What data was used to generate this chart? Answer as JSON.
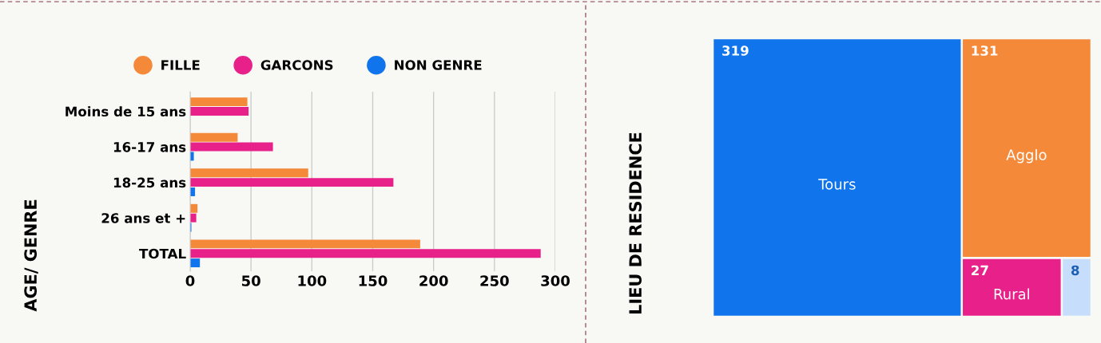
{
  "chart_data": [
    {
      "type": "bar",
      "orientation": "horizontal",
      "ylabel": "AGE/ GENRE",
      "categories": [
        "Moins de 15 ans",
        "16-17 ans",
        "18-25 ans",
        "26 ans et +",
        "TOTAL"
      ],
      "series": [
        {
          "name": "FILLE",
          "color": "#f5893a",
          "values": [
            47,
            39,
            97,
            6,
            189
          ]
        },
        {
          "name": "GARCONS",
          "color": "#e8218a",
          "values": [
            48,
            68,
            167,
            5,
            288
          ]
        },
        {
          "name": "NON GENRE",
          "color": "#1074ec",
          "values": [
            0,
            3,
            4,
            1,
            8
          ]
        }
      ],
      "xlim": [
        0,
        300
      ],
      "xticks": [
        0,
        50,
        100,
        150,
        200,
        250,
        300
      ],
      "grid": "x",
      "legend": "top",
      "marker": "circle"
    },
    {
      "type": "other",
      "ylabel": "LIEU DE RESIDENCE",
      "categories": [
        "Tours",
        "Agglo",
        "Rural",
        null
      ],
      "values": [
        319,
        131,
        27,
        8
      ],
      "data_labels": true,
      "colors": [
        "#1074ec",
        "#f5893a",
        "#e8218a",
        "#c6defc"
      ]
    }
  ]
}
